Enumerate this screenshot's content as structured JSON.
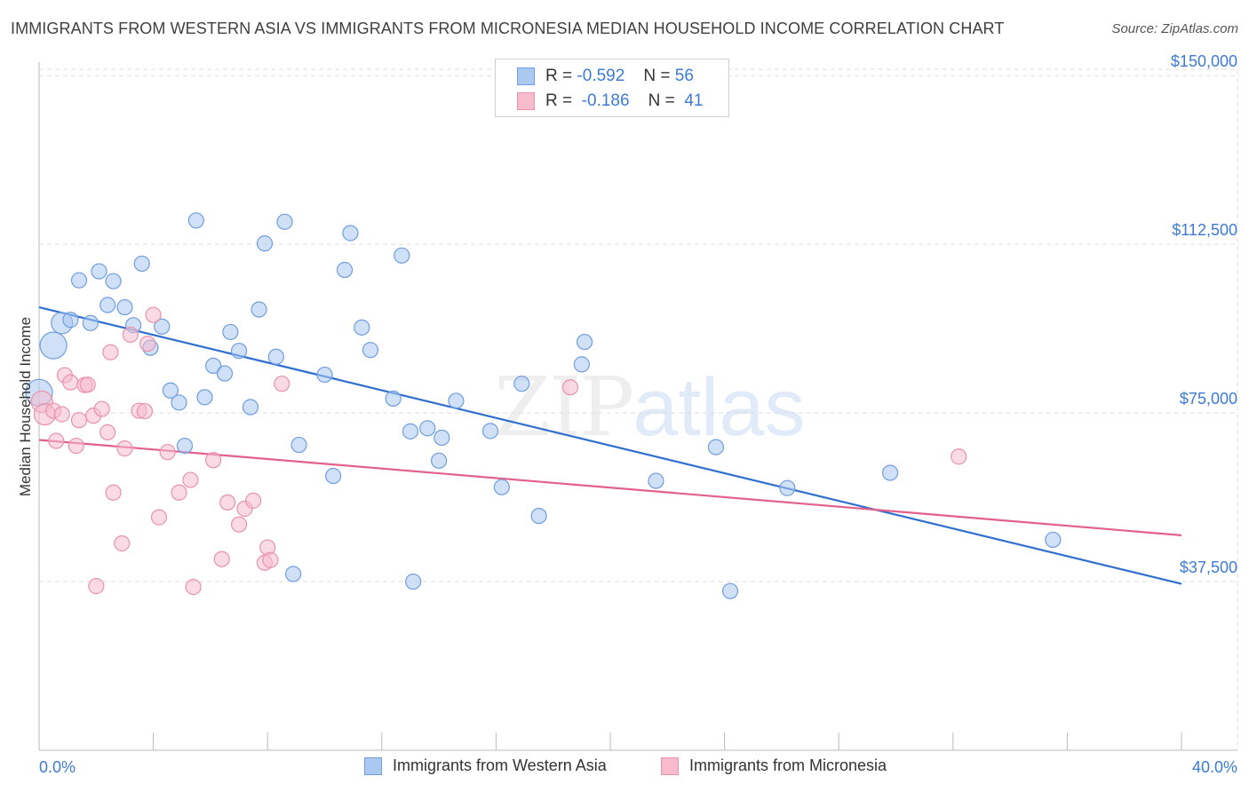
{
  "header": {
    "title": "IMMIGRANTS FROM WESTERN ASIA VS IMMIGRANTS FROM MICRONESIA MEDIAN HOUSEHOLD INCOME CORRELATION CHART",
    "source": "Source: ZipAtlas.com"
  },
  "watermark": {
    "zip": "ZIP",
    "atlas": "atlas"
  },
  "legend_top": {
    "rows": [
      {
        "r_label": "R =",
        "r_value": "-0.592",
        "n_label": "N =",
        "n_value": "56"
      },
      {
        "r_label": "R =",
        "r_value": "-0.186",
        "n_label": "N =",
        "n_value": "41"
      }
    ]
  },
  "colors": {
    "blue_fill": "#aac8f0",
    "blue_stroke": "#6f9de0",
    "blue_line": "#2f6fd0",
    "pink_fill": "#f6bccd",
    "pink_stroke": "#e892ac",
    "pink_line": "#e3608c",
    "accent_text": "#3d7ad6",
    "grid": "#dddddd"
  },
  "chart_data": {
    "type": "scatter",
    "title": "IMMIGRANTS FROM WESTERN ASIA VS IMMIGRANTS FROM MICRONESIA MEDIAN HOUSEHOLD INCOME CORRELATION CHART",
    "xlabel": "",
    "ylabel": "Median Household Income",
    "xlim": [
      0,
      40
    ],
    "ylim": [
      0,
      153000
    ],
    "x_tick_labels": [
      "0.0%",
      "40.0%"
    ],
    "y_ticks": [
      37500,
      75000,
      112500,
      150000
    ],
    "y_tick_labels": [
      "$37,500",
      "$75,000",
      "$112,500",
      "$150,000"
    ],
    "grid": true,
    "legend_position": "bottom",
    "series": [
      {
        "name": "Immigrants from Western Asia",
        "color": "blue",
        "trend": {
          "x": [
            0,
            40
          ],
          "y": [
            98500,
            37000
          ]
        },
        "points": [
          {
            "x": 0.0,
            "y": 79500,
            "size": "large"
          },
          {
            "x": 0.5,
            "y": 90000,
            "size": "large"
          },
          {
            "x": 0.8,
            "y": 95000,
            "size": "medium"
          },
          {
            "x": 1.1,
            "y": 95700,
            "size": "small"
          },
          {
            "x": 1.4,
            "y": 104500,
            "size": "small"
          },
          {
            "x": 1.8,
            "y": 95000,
            "size": "small"
          },
          {
            "x": 2.1,
            "y": 106500,
            "size": "small"
          },
          {
            "x": 2.4,
            "y": 99000,
            "size": "small"
          },
          {
            "x": 2.6,
            "y": 104300,
            "size": "small"
          },
          {
            "x": 3.0,
            "y": 98500,
            "size": "small"
          },
          {
            "x": 3.3,
            "y": 94500,
            "size": "small"
          },
          {
            "x": 3.6,
            "y": 108200,
            "size": "small"
          },
          {
            "x": 3.9,
            "y": 89500,
            "size": "small"
          },
          {
            "x": 4.3,
            "y": 94200,
            "size": "small"
          },
          {
            "x": 4.6,
            "y": 80000,
            "size": "small"
          },
          {
            "x": 4.9,
            "y": 77300,
            "size": "small"
          },
          {
            "x": 5.1,
            "y": 67700,
            "size": "small"
          },
          {
            "x": 5.5,
            "y": 117800,
            "size": "small"
          },
          {
            "x": 5.8,
            "y": 78500,
            "size": "small"
          },
          {
            "x": 6.1,
            "y": 85500,
            "size": "small"
          },
          {
            "x": 6.5,
            "y": 83800,
            "size": "small"
          },
          {
            "x": 6.7,
            "y": 93000,
            "size": "small"
          },
          {
            "x": 7.0,
            "y": 88800,
            "size": "small"
          },
          {
            "x": 7.4,
            "y": 76300,
            "size": "small"
          },
          {
            "x": 7.7,
            "y": 98000,
            "size": "small"
          },
          {
            "x": 7.9,
            "y": 112700,
            "size": "small"
          },
          {
            "x": 8.3,
            "y": 87500,
            "size": "small"
          },
          {
            "x": 8.6,
            "y": 117500,
            "size": "small"
          },
          {
            "x": 8.9,
            "y": 39200,
            "size": "small"
          },
          {
            "x": 9.1,
            "y": 67900,
            "size": "small"
          },
          {
            "x": 10.0,
            "y": 83500,
            "size": "small"
          },
          {
            "x": 10.3,
            "y": 61000,
            "size": "small"
          },
          {
            "x": 10.7,
            "y": 106800,
            "size": "small"
          },
          {
            "x": 10.9,
            "y": 115000,
            "size": "small"
          },
          {
            "x": 11.3,
            "y": 94000,
            "size": "small"
          },
          {
            "x": 11.6,
            "y": 89000,
            "size": "small"
          },
          {
            "x": 12.4,
            "y": 78200,
            "size": "small"
          },
          {
            "x": 12.7,
            "y": 110000,
            "size": "small"
          },
          {
            "x": 13.0,
            "y": 70900,
            "size": "small"
          },
          {
            "x": 13.1,
            "y": 37500,
            "size": "small"
          },
          {
            "x": 13.6,
            "y": 71600,
            "size": "small"
          },
          {
            "x": 14.0,
            "y": 64400,
            "size": "small"
          },
          {
            "x": 14.1,
            "y": 69500,
            "size": "small"
          },
          {
            "x": 14.6,
            "y": 77700,
            "size": "small"
          },
          {
            "x": 15.8,
            "y": 71000,
            "size": "small"
          },
          {
            "x": 16.2,
            "y": 58500,
            "size": "small"
          },
          {
            "x": 16.9,
            "y": 81500,
            "size": "small"
          },
          {
            "x": 17.5,
            "y": 52100,
            "size": "small"
          },
          {
            "x": 19.0,
            "y": 85800,
            "size": "small"
          },
          {
            "x": 19.1,
            "y": 90800,
            "size": "small"
          },
          {
            "x": 21.6,
            "y": 59900,
            "size": "small"
          },
          {
            "x": 23.7,
            "y": 67400,
            "size": "small"
          },
          {
            "x": 24.2,
            "y": 35400,
            "size": "small"
          },
          {
            "x": 26.2,
            "y": 58300,
            "size": "small"
          },
          {
            "x": 29.8,
            "y": 61700,
            "size": "small"
          },
          {
            "x": 35.5,
            "y": 46800,
            "size": "small"
          }
        ]
      },
      {
        "name": "Immigrants from Micronesia",
        "color": "pink",
        "trend": {
          "x": [
            0,
            40
          ],
          "y": [
            69000,
            47800
          ]
        },
        "points": [
          {
            "x": 0.1,
            "y": 77500,
            "size": "medium"
          },
          {
            "x": 0.2,
            "y": 74700,
            "size": "medium"
          },
          {
            "x": 0.5,
            "y": 75500,
            "size": "small"
          },
          {
            "x": 0.6,
            "y": 68800,
            "size": "small"
          },
          {
            "x": 0.8,
            "y": 74700,
            "size": "small"
          },
          {
            "x": 0.9,
            "y": 83400,
            "size": "small"
          },
          {
            "x": 1.1,
            "y": 81800,
            "size": "small"
          },
          {
            "x": 1.3,
            "y": 67700,
            "size": "small"
          },
          {
            "x": 1.4,
            "y": 73400,
            "size": "small"
          },
          {
            "x": 1.6,
            "y": 81200,
            "size": "small"
          },
          {
            "x": 1.7,
            "y": 81300,
            "size": "small"
          },
          {
            "x": 1.9,
            "y": 74400,
            "size": "small"
          },
          {
            "x": 2.0,
            "y": 36500,
            "size": "small"
          },
          {
            "x": 2.2,
            "y": 75900,
            "size": "small"
          },
          {
            "x": 2.4,
            "y": 70700,
            "size": "small"
          },
          {
            "x": 2.5,
            "y": 88500,
            "size": "small"
          },
          {
            "x": 2.6,
            "y": 57300,
            "size": "small"
          },
          {
            "x": 2.9,
            "y": 46000,
            "size": "small"
          },
          {
            "x": 3.0,
            "y": 67100,
            "size": "small"
          },
          {
            "x": 3.2,
            "y": 92400,
            "size": "small"
          },
          {
            "x": 3.5,
            "y": 75500,
            "size": "small"
          },
          {
            "x": 3.7,
            "y": 75400,
            "size": "small"
          },
          {
            "x": 3.8,
            "y": 90400,
            "size": "small"
          },
          {
            "x": 4.0,
            "y": 96800,
            "size": "small"
          },
          {
            "x": 4.2,
            "y": 51800,
            "size": "small"
          },
          {
            "x": 4.5,
            "y": 66300,
            "size": "small"
          },
          {
            "x": 4.9,
            "y": 57300,
            "size": "small"
          },
          {
            "x": 5.3,
            "y": 60100,
            "size": "small"
          },
          {
            "x": 5.4,
            "y": 36300,
            "size": "small"
          },
          {
            "x": 6.1,
            "y": 64500,
            "size": "small"
          },
          {
            "x": 6.4,
            "y": 42500,
            "size": "small"
          },
          {
            "x": 6.6,
            "y": 55100,
            "size": "small"
          },
          {
            "x": 7.0,
            "y": 50200,
            "size": "small"
          },
          {
            "x": 7.2,
            "y": 53700,
            "size": "small"
          },
          {
            "x": 7.5,
            "y": 55500,
            "size": "small"
          },
          {
            "x": 7.9,
            "y": 41700,
            "size": "small"
          },
          {
            "x": 8.0,
            "y": 45100,
            "size": "small"
          },
          {
            "x": 8.1,
            "y": 42300,
            "size": "small"
          },
          {
            "x": 8.5,
            "y": 81500,
            "size": "small"
          },
          {
            "x": 18.6,
            "y": 80700,
            "size": "small"
          },
          {
            "x": 32.2,
            "y": 65300,
            "size": "small"
          }
        ]
      }
    ]
  }
}
